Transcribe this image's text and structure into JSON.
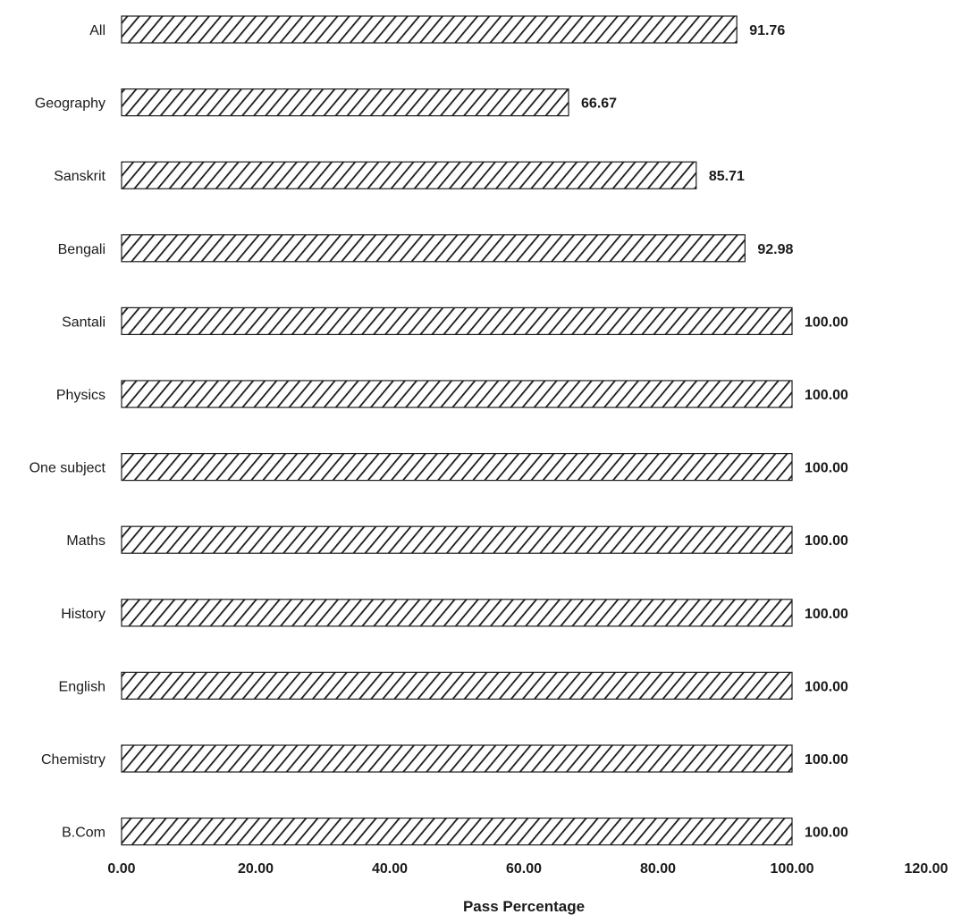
{
  "chart_data": {
    "type": "bar",
    "orientation": "horizontal",
    "categories": [
      "All",
      "Geography",
      "Sanskrit",
      "Bengali",
      "Santali",
      "Physics",
      "One subject",
      "Maths",
      "History",
      "English",
      "Chemistry",
      "B.Com"
    ],
    "values": [
      91.76,
      66.67,
      85.71,
      92.98,
      100.0,
      100.0,
      100.0,
      100.0,
      100.0,
      100.0,
      100.0,
      100.0
    ],
    "value_labels": [
      "91.76",
      "66.67",
      "85.71",
      "92.98",
      "100.00",
      "100.00",
      "100.00",
      "100.00",
      "100.00",
      "100.00",
      "100.00",
      "100.00"
    ],
    "xlabel": "Pass Percentage",
    "ylabel": "",
    "xlim": [
      0,
      120
    ],
    "x_ticks": [
      "0.00",
      "20.00",
      "40.00",
      "60.00",
      "80.00",
      "100.00",
      "120.00"
    ],
    "grid": false,
    "bar_fill": "diagonal-hatch",
    "colors": {
      "bar_stroke": "#1a1a1a",
      "hatch": "#1a1a1a",
      "background": "#ffffff",
      "text": "#1a1a1a"
    }
  }
}
